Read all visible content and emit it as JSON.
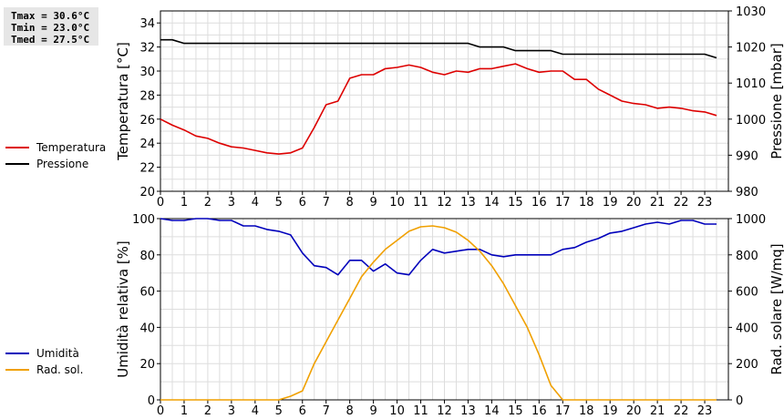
{
  "stats": {
    "tmax": "Tmax = 30.6°C",
    "tmin": "Tmin = 23.0°C",
    "tmed": "Tmed = 27.5°C"
  },
  "colors": {
    "temperature": "#dd0000",
    "pressure": "#000000",
    "humidity": "#0000bb",
    "radiation": "#f0a000",
    "grid": "#dddddd"
  },
  "chart_data": [
    {
      "type": "line",
      "xlabel": "",
      "xlim": [
        0,
        24
      ],
      "x_ticks": [
        "0",
        "1",
        "2",
        "3",
        "4",
        "5",
        "6",
        "7",
        "8",
        "9",
        "10",
        "11",
        "12",
        "13",
        "14",
        "15",
        "16",
        "17",
        "18",
        "19",
        "20",
        "21",
        "22",
        "23"
      ],
      "ylabel_left": "Temperatura [°C]",
      "ylim_left": [
        20,
        35
      ],
      "y_ticks_left": [
        "20",
        "22",
        "24",
        "26",
        "28",
        "30",
        "32",
        "34"
      ],
      "ylabel_right": "Pressione [mbar]",
      "ylim_right": [
        980,
        1030
      ],
      "y_ticks_right": [
        "980",
        "990",
        "1000",
        "1010",
        "1020",
        "1030"
      ],
      "series": [
        {
          "name": "Temperatura",
          "axis": "left",
          "x": [
            0,
            0.5,
            1,
            1.5,
            2,
            2.5,
            3,
            3.5,
            4,
            4.5,
            5,
            5.5,
            6,
            6.5,
            7,
            7.5,
            8,
            8.5,
            9,
            9.5,
            10,
            10.5,
            11,
            11.5,
            12,
            12.5,
            13,
            13.5,
            14,
            14.5,
            15,
            15.5,
            16,
            16.5,
            17,
            17.5,
            18,
            18.5,
            19,
            19.5,
            20,
            20.5,
            21,
            21.5,
            22,
            22.5,
            23,
            23.5
          ],
          "values": [
            26.0,
            25.5,
            25.1,
            24.6,
            24.4,
            24.0,
            23.7,
            23.6,
            23.4,
            23.2,
            23.1,
            23.2,
            23.6,
            25.3,
            27.2,
            27.5,
            29.4,
            29.7,
            29.7,
            30.2,
            30.3,
            30.5,
            30.3,
            29.9,
            29.7,
            30.0,
            29.9,
            30.2,
            30.2,
            30.4,
            30.6,
            30.2,
            29.9,
            30.0,
            30.0,
            29.3,
            29.3,
            28.5,
            28.0,
            27.5,
            27.3,
            27.2,
            26.9,
            27.0,
            26.9,
            26.7,
            26.6,
            26.3
          ]
        },
        {
          "name": "Pressione",
          "axis": "right",
          "x": [
            0,
            0.5,
            1,
            1.5,
            2,
            2.5,
            3,
            3.5,
            4,
            4.5,
            5,
            5.5,
            6,
            6.5,
            7,
            7.5,
            8,
            8.5,
            9,
            9.5,
            10,
            10.5,
            11,
            11.5,
            12,
            12.5,
            13,
            13.5,
            14,
            14.5,
            15,
            15.5,
            16,
            16.5,
            17,
            17.5,
            18,
            18.5,
            19,
            19.5,
            20,
            20.5,
            21,
            21.5,
            22,
            22.5,
            23,
            23.5
          ],
          "values": [
            1022,
            1022,
            1021,
            1021,
            1021,
            1021,
            1021,
            1021,
            1021,
            1021,
            1021,
            1021,
            1021,
            1021,
            1021,
            1021,
            1021,
            1021,
            1021,
            1021,
            1021,
            1021,
            1021,
            1021,
            1021,
            1021,
            1021,
            1020,
            1020,
            1020,
            1019,
            1019,
            1019,
            1019,
            1018,
            1018,
            1018,
            1018,
            1018,
            1018,
            1018,
            1018,
            1018,
            1018,
            1018,
            1018,
            1018,
            1017
          ]
        }
      ]
    },
    {
      "type": "line",
      "xlabel": "",
      "xlim": [
        0,
        24
      ],
      "x_ticks": [
        "0",
        "1",
        "2",
        "3",
        "4",
        "5",
        "6",
        "7",
        "8",
        "9",
        "10",
        "11",
        "12",
        "13",
        "14",
        "15",
        "16",
        "17",
        "18",
        "19",
        "20",
        "21",
        "22",
        "23"
      ],
      "ylabel_left": "Umidità relativa [%]",
      "ylim_left": [
        0,
        100
      ],
      "y_ticks_left": [
        "0",
        "20",
        "40",
        "60",
        "80",
        "100"
      ],
      "ylabel_right": "Rad. solare [W/mq]",
      "ylim_right": [
        0,
        1000
      ],
      "y_ticks_right": [
        "0",
        "200",
        "400",
        "600",
        "800",
        "1000"
      ],
      "series": [
        {
          "name": "Umidità",
          "axis": "left",
          "x": [
            0,
            0.5,
            1,
            1.5,
            2,
            2.5,
            3,
            3.5,
            4,
            4.5,
            5,
            5.5,
            6,
            6.5,
            7,
            7.5,
            8,
            8.5,
            9,
            9.5,
            10,
            10.5,
            11,
            11.5,
            12,
            12.5,
            13,
            13.5,
            14,
            14.5,
            15,
            15.5,
            16,
            16.5,
            17,
            17.5,
            18,
            18.5,
            19,
            19.5,
            20,
            20.5,
            21,
            21.5,
            22,
            22.5,
            23,
            23.5
          ],
          "values": [
            100,
            99,
            99,
            100,
            100,
            99,
            99,
            96,
            96,
            94,
            93,
            91,
            81,
            74,
            73,
            69,
            77,
            77,
            71,
            75,
            70,
            69,
            77,
            83,
            81,
            82,
            83,
            83,
            80,
            79,
            80,
            80,
            80,
            80,
            83,
            84,
            87,
            89,
            92,
            93,
            95,
            97,
            98,
            97,
            99,
            99,
            97,
            97
          ]
        },
        {
          "name": "Rad. sol.",
          "axis": "right",
          "x": [
            0,
            0.5,
            1,
            1.5,
            2,
            2.5,
            3,
            3.5,
            4,
            4.5,
            5,
            5.5,
            6,
            6.5,
            7,
            7.5,
            8,
            8.5,
            9,
            9.5,
            10,
            10.5,
            11,
            11.5,
            12,
            12.5,
            13,
            13.5,
            14,
            14.5,
            15,
            15.5,
            16,
            16.5,
            17,
            17.5,
            18,
            18.5,
            19,
            19.5,
            20,
            20.5,
            21,
            21.5,
            22,
            22.5,
            23,
            23.5
          ],
          "values": [
            0,
            0,
            0,
            0,
            0,
            0,
            0,
            0,
            0,
            0,
            0,
            20,
            50,
            200,
            320,
            440,
            560,
            680,
            760,
            830,
            880,
            930,
            955,
            960,
            950,
            925,
            880,
            820,
            740,
            640,
            520,
            400,
            250,
            80,
            0,
            0,
            0,
            0,
            0,
            0,
            0,
            0,
            0,
            0,
            0,
            0,
            0,
            0
          ]
        }
      ]
    }
  ]
}
